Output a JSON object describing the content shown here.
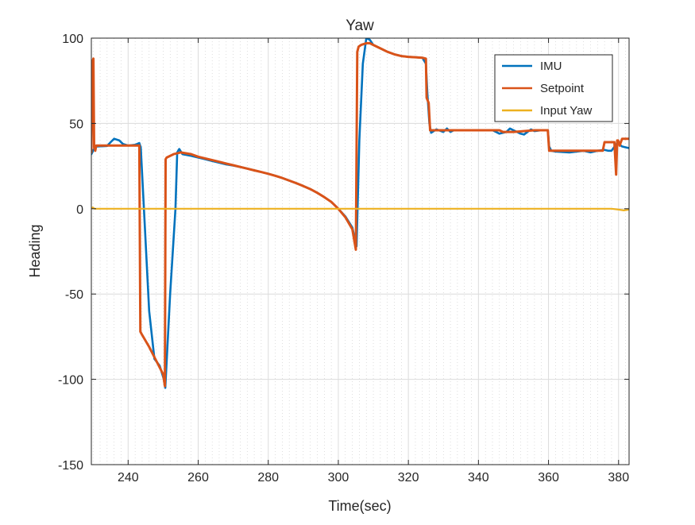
{
  "chart_data": {
    "type": "line",
    "title": "Yaw",
    "xlabel": "Time(sec)",
    "ylabel": "Heading",
    "xlim": [
      229.5,
      383
    ],
    "ylim": [
      -150,
      100
    ],
    "xticks": [
      240,
      260,
      280,
      300,
      320,
      340,
      360,
      380
    ],
    "yticks": [
      -150,
      -100,
      -50,
      0,
      50,
      100
    ],
    "grid": true,
    "minor_grid_x": true,
    "legend_position": "top-right",
    "series": [
      {
        "name": "IMU",
        "color": "#0072BD",
        "x": [
          229.5,
          230,
          230.5,
          231,
          234,
          235,
          236,
          237.5,
          238.5,
          240,
          242,
          243.2,
          243.6,
          244.5,
          246,
          247.5,
          249,
          250.2,
          250.6,
          252,
          253.5,
          254,
          254.6,
          255.5,
          258,
          260,
          262,
          264,
          266,
          268,
          270,
          272,
          274,
          276,
          278,
          280,
          282,
          284,
          286,
          288,
          290,
          292,
          294,
          296,
          298,
          300,
          302,
          304,
          305.2,
          306,
          307,
          308,
          309,
          310,
          312,
          314,
          316,
          318,
          320,
          322,
          324,
          325,
          325.4,
          326,
          326.5,
          328,
          330,
          331,
          332,
          333,
          335,
          340,
          344,
          345,
          346,
          348,
          349,
          350,
          351,
          352,
          353,
          354,
          355,
          356,
          358,
          359.8,
          360.2,
          360.8,
          362,
          366,
          370,
          372,
          374,
          376,
          377,
          378,
          379.4,
          380,
          381,
          382,
          383
        ],
        "y": [
          32,
          34,
          36,
          36.5,
          36.8,
          39,
          41,
          40,
          38,
          37,
          37.5,
          38.5,
          36,
          0,
          -60,
          -88,
          -92,
          -100,
          -105,
          -50,
          0,
          33,
          35,
          32,
          31,
          30,
          29,
          28,
          27,
          26,
          25.3,
          24.5,
          23.5,
          22.5,
          21.5,
          20.5,
          19.3,
          18,
          16.5,
          15,
          13.3,
          11.5,
          9.3,
          6.8,
          4,
          0,
          -4.5,
          -11,
          -22,
          40,
          85,
          100,
          99,
          96,
          94,
          92,
          90.5,
          89.5,
          89,
          88.8,
          88.5,
          85,
          68,
          50,
          44.5,
          46.5,
          45,
          47,
          45,
          46,
          46,
          46.1,
          46,
          45,
          44,
          45,
          47,
          46,
          45,
          44,
          43.5,
          45,
          46.5,
          45.5,
          46,
          46,
          36.5,
          34,
          33.5,
          33,
          34,
          33,
          34,
          34.5,
          34,
          34,
          38,
          38,
          36.5,
          36,
          35.5
        ]
      },
      {
        "name": "Setpoint",
        "color": "#D95319",
        "x": [
          229.5,
          229.8,
          230.1,
          230.3,
          230.6,
          230.9,
          231.2,
          235,
          238,
          240,
          241,
          243.2,
          243.5,
          244,
          246,
          248,
          250,
          250.5,
          250.7,
          251,
          253,
          255,
          258,
          260,
          262,
          264,
          266,
          268,
          270,
          272,
          274,
          276,
          278,
          280,
          282,
          284,
          286,
          288,
          290,
          292,
          294,
          296,
          298,
          300,
          302,
          304,
          305,
          305.4,
          305.8,
          306.5,
          308,
          309,
          310,
          312,
          314,
          316,
          318,
          320,
          322,
          324,
          325,
          325.2,
          325.8,
          326.2,
          327,
          340,
          346,
          347,
          350,
          356,
          358,
          359.8,
          360.2,
          365,
          375.5,
          376,
          378.8,
          379.3,
          379.6,
          379.9,
          380.3,
          381,
          383
        ],
        "y": [
          33,
          86,
          88,
          36,
          34,
          37,
          37,
          37,
          37,
          37,
          37,
          37,
          -72,
          -74,
          -81,
          -89,
          -97,
          -104,
          29,
          30,
          32,
          33,
          32,
          30.5,
          29.5,
          28.5,
          27.5,
          26.5,
          25.5,
          24.5,
          23.5,
          22.5,
          21.5,
          20.5,
          19.3,
          18,
          16.5,
          15,
          13.3,
          11.5,
          9.3,
          6.8,
          4,
          0,
          -5,
          -12,
          -24,
          92,
          95,
          96,
          97,
          97,
          96,
          94,
          92,
          90.5,
          89.5,
          89,
          88.8,
          88.5,
          88,
          65,
          62,
          46,
          46,
          46,
          46,
          45,
          45,
          46,
          46,
          46,
          34,
          34,
          34,
          39,
          39,
          20,
          40,
          40,
          37,
          41,
          41
        ]
      },
      {
        "name": "Input Yaw",
        "color": "#EDB120",
        "x": [
          229.5,
          229.9,
          230.4,
          240,
          300,
          340,
          378,
          380,
          381.5,
          383
        ],
        "y": [
          0,
          0.8,
          0,
          0,
          0,
          0,
          0,
          -0.5,
          -1,
          -0.5
        ]
      }
    ]
  }
}
